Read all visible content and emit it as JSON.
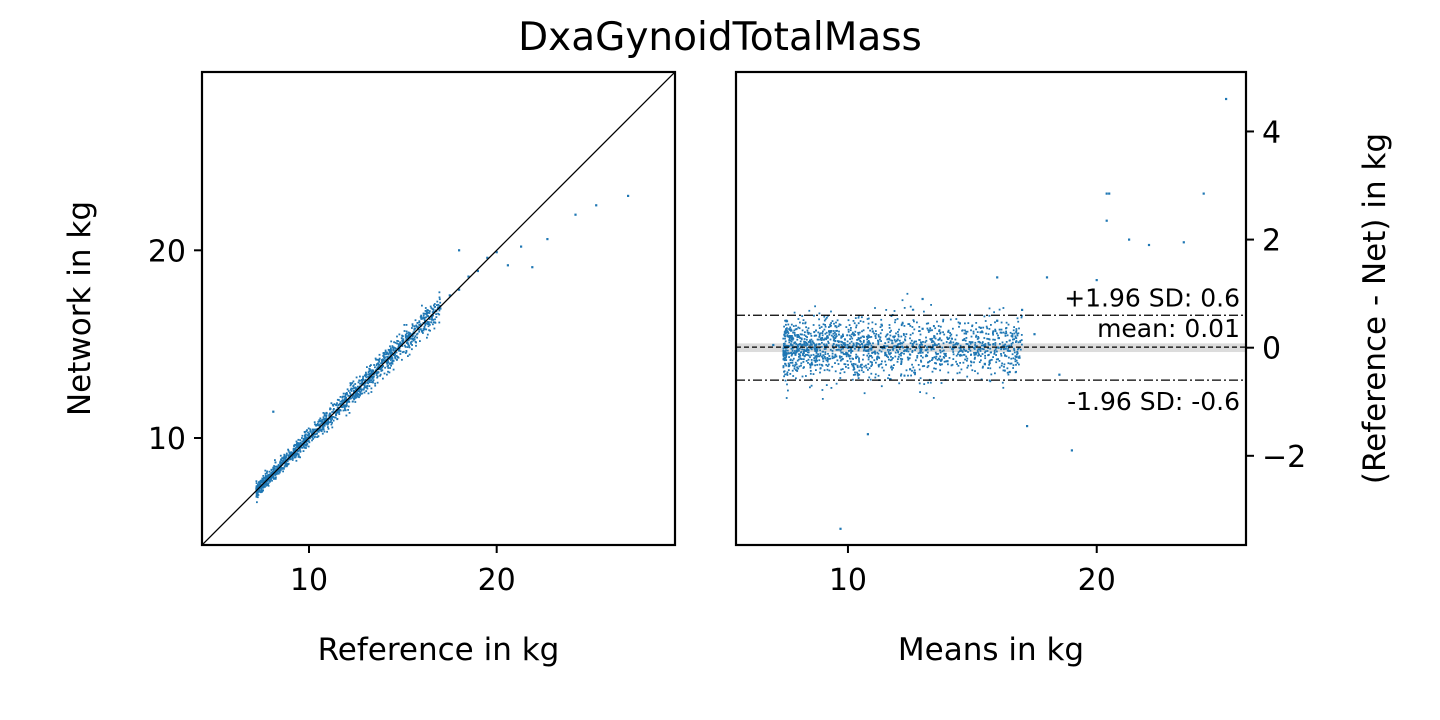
{
  "colors": {
    "points": "#1f77b4",
    "lines": "#000000",
    "zero_band": "#d3d3d3"
  },
  "chart_data": [
    {
      "type": "scatter",
      "title": "DxaGynoidTotalMass",
      "xlabel": "Reference in kg",
      "ylabel": "Network in kg",
      "xlim": [
        4.3,
        29.5
      ],
      "ylim": [
        4.3,
        29.5
      ],
      "xticks": [
        10,
        20
      ],
      "yticks": [
        10,
        20
      ],
      "xtick_labels": [
        "10",
        "20"
      ],
      "ytick_labels": [
        "10",
        "20"
      ],
      "identity_line": true,
      "series": [
        {
          "x": [
            7.2,
            7.6,
            8.0,
            8.3,
            8.6,
            8.9,
            9.1,
            9.4,
            9.7,
            10.0,
            10.3,
            10.6,
            10.9,
            11.2,
            11.5,
            11.8,
            12.1,
            12.4,
            12.7,
            13.0,
            13.3,
            13.6,
            13.9,
            14.2,
            14.6,
            15.0,
            15.4,
            15.8,
            16.2,
            16.6,
            17.0,
            17.5,
            18.0,
            18.5,
            19.0,
            19.5,
            20.0,
            20.6,
            21.3,
            21.9,
            22.7,
            24.2,
            25.3,
            27.0,
            8.1,
            7.8,
            18.0,
            12.5,
            10.8,
            14.8
          ],
          "y": [
            7.3,
            7.7,
            8.1,
            8.3,
            8.7,
            8.9,
            9.2,
            9.3,
            9.8,
            10.0,
            10.2,
            10.6,
            11.0,
            11.1,
            11.5,
            11.9,
            12.0,
            12.5,
            12.6,
            13.0,
            13.4,
            13.5,
            14.0,
            14.1,
            14.6,
            15.1,
            15.3,
            15.9,
            16.1,
            16.7,
            16.9,
            17.6,
            17.9,
            18.6,
            18.9,
            19.6,
            19.9,
            19.2,
            20.2,
            19.1,
            20.6,
            21.9,
            22.4,
            22.9,
            11.4,
            7.5,
            20.0,
            12.3,
            11.0,
            14.7
          ]
        }
      ]
    },
    {
      "type": "scatter",
      "xlabel": "Means in kg",
      "ylabel": "(Reference - Net) in kg",
      "xlim": [
        5.5,
        26.0
      ],
      "ylim": [
        -3.65,
        5.1
      ],
      "xticks": [
        10,
        20
      ],
      "yticks": [
        -2,
        0,
        2,
        4
      ],
      "xtick_labels": [
        "10",
        "20"
      ],
      "ytick_labels": [
        "−2",
        "0",
        "2",
        "4"
      ],
      "reference_lines": {
        "mean": 0.01,
        "upper": 0.6,
        "lower": -0.6
      },
      "annotations": [
        "+1.96 SD: 0.6",
        "mean: 0.01",
        "-1.96 SD: -0.6"
      ],
      "series": [
        {
          "x": [
            7.0,
            7.5,
            8.0,
            8.5,
            9.0,
            9.5,
            10.0,
            10.5,
            11.0,
            11.5,
            12.0,
            12.5,
            13.0,
            13.5,
            14.0,
            14.5,
            15.0,
            15.5,
            16.0,
            16.5,
            17.0,
            17.5,
            18.0,
            18.5,
            19.0,
            20.0,
            20.4,
            20.5,
            20.4,
            21.3,
            22.1,
            23.5,
            24.3,
            25.2,
            9.7,
            10.8,
            19.0,
            17.2,
            16.0,
            13.0
          ],
          "y": [
            0.05,
            -0.1,
            0.2,
            0.1,
            -0.2,
            0.4,
            0.0,
            -0.35,
            0.3,
            -0.1,
            0.15,
            -0.4,
            0.35,
            0.05,
            -0.25,
            0.45,
            0.1,
            -0.3,
            0.5,
            -0.45,
            0.7,
            0.25,
            1.3,
            -0.5,
            0.9,
            1.25,
            2.35,
            2.85,
            2.85,
            2.0,
            1.9,
            1.95,
            2.85,
            4.6,
            -3.35,
            -1.6,
            -1.9,
            -1.45,
            1.3,
            0.9
          ]
        }
      ]
    }
  ]
}
